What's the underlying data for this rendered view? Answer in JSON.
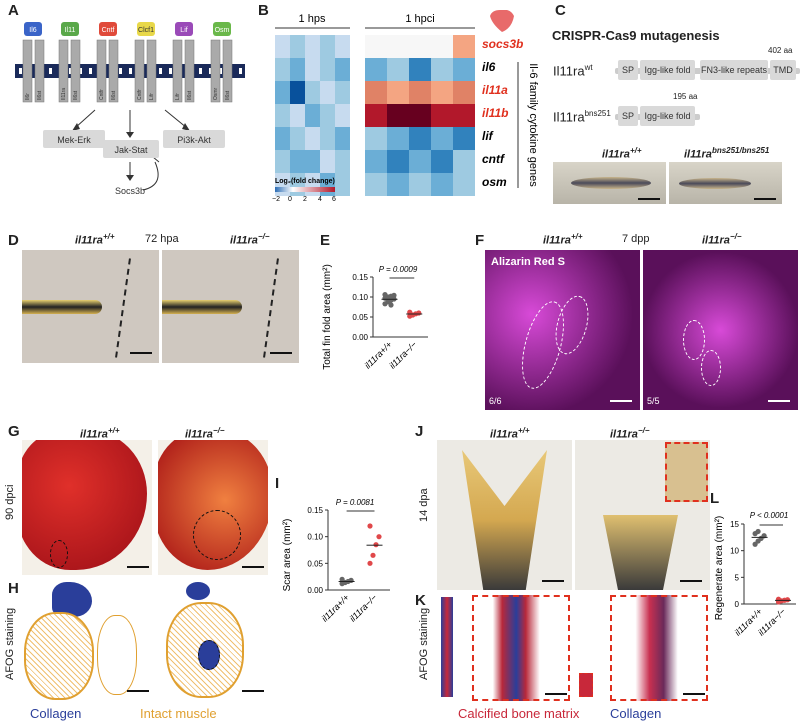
{
  "panels": {
    "A": "A",
    "B": "B",
    "C": "C",
    "D": "D",
    "E": "E",
    "F": "F",
    "G": "G",
    "H": "H",
    "I": "I",
    "J": "J",
    "K": "K",
    "L": "L"
  },
  "panelA": {
    "ligands": [
      "Il6",
      "Il11",
      "Cntf",
      "Clcf1",
      "Lif",
      "Osm"
    ],
    "ligand_colors": [
      "#3a64c8",
      "#5aa84a",
      "#e04a3a",
      "#e8d84a",
      "#9a4ab8",
      "#6ab84a"
    ],
    "receptors": [
      "Il6r",
      "Il6st",
      "Il11ra",
      "Il6st",
      "Cntfr",
      "Il6st",
      "Cntfr",
      "Lifr",
      "Lifr",
      "Il6st",
      "Osmr",
      "Il6st"
    ],
    "pathways": [
      "Mek-Erk",
      "Jak-Stat",
      "Pi3k-Akt"
    ],
    "feedback": "Socs3b"
  },
  "panelB": {
    "group1": "1 hps",
    "group2": "1 hpci",
    "genes": [
      "socs3b",
      "il6",
      "il11a",
      "il11b",
      "lif",
      "cntf",
      "osm"
    ],
    "bracket_label": "Il-6 family cytokine genes",
    "legend_title": "Log₂(fold change)",
    "legend_ticks": [
      "−2",
      "0",
      "2",
      "4",
      "6"
    ]
  },
  "panelC": {
    "title": "CRISPR-Cas9 mutagenesis",
    "wt_label": "Il11ra",
    "wt_sup": "wt",
    "wt_length": "402 aa",
    "wt_domains": [
      "SP",
      "Igg-like fold",
      "FN3-like repeats",
      "TMD"
    ],
    "mut_label": "Il11ra",
    "mut_sup": "bns251",
    "mut_length": "195 aa",
    "mut_domains": [
      "SP",
      "Igg-like fold"
    ],
    "fish_wt": "il11ra",
    "fish_wt_sup": "+/+",
    "fish_mut": "il11ra",
    "fish_mut_sup": "bns251/bns251"
  },
  "panelD": {
    "wt": "il11ra",
    "wt_sup": "+/+",
    "time": "72 hpa",
    "mut": "il11ra",
    "mut_sup": "−/−"
  },
  "panelE": {
    "ylabel": "Total fin fold area (mm²)",
    "pvalue": "P = 0.0009",
    "yticks": [
      "0.00",
      "0.05",
      "0.10",
      "0.15"
    ],
    "xticks": [
      "il11ra+/+",
      "il11ra−/−"
    ]
  },
  "panelF": {
    "wt": "il11ra",
    "wt_sup": "+/+",
    "time": "7 dpp",
    "mut": "il11ra",
    "mut_sup": "−/−",
    "stain": "Alizarin Red S",
    "count_wt": "6/6",
    "count_mut": "5/5"
  },
  "panelG": {
    "wt": "il11ra",
    "wt_sup": "+/+",
    "mut": "il11ra",
    "mut_sup": "−/−",
    "side": "90 dpci"
  },
  "panelH": {
    "side": "AFOG staining",
    "legend_collagen": "Collagen",
    "legend_muscle": "Intact muscle"
  },
  "panelI": {
    "ylabel": "Scar area (mm²)",
    "pvalue": "P = 0.0081",
    "yticks": [
      "0.00",
      "0.05",
      "0.10",
      "0.15"
    ],
    "xticks": [
      "il11ra+/+",
      "il11ra−/−"
    ]
  },
  "panelJ": {
    "wt": "il11ra",
    "wt_sup": "+/+",
    "mut": "il11ra",
    "mut_sup": "−/−",
    "side": "14 dpa"
  },
  "panelK": {
    "side": "AFOG staining",
    "legend_bone": "Calcified bone matrix",
    "legend_collagen": "Collagen"
  },
  "panelL": {
    "ylabel": "Regenerate area (mm²)",
    "pvalue": "P < 0.0001",
    "yticks": [
      "0",
      "5",
      "10",
      "15"
    ],
    "xticks": [
      "il11ra+/+",
      "il11ra−/−"
    ]
  },
  "colors": {
    "heat_neg": "#2c6db5",
    "heat_pos": "#b2182b",
    "red_text": "#e0301e",
    "wt_dots": "#666666",
    "mut_dots": "#e0484a",
    "collagen": "#2a3e9a",
    "muscle": "#e0a030"
  },
  "chart_data": [
    {
      "type": "scatter",
      "panel": "E",
      "ylabel": "Total fin fold area (mm²)",
      "ylim": [
        0,
        0.15
      ],
      "categories": [
        "il11ra+/+",
        "il11ra−/−"
      ],
      "series": [
        {
          "values": [
            0.083,
            0.088,
            0.092,
            0.095,
            0.097,
            0.1,
            0.102,
            0.104,
            0.106,
            0.09,
            0.08
          ]
        },
        {
          "values": [
            0.052,
            0.055,
            0.058,
            0.06,
            0.062
          ]
        }
      ]
    },
    {
      "type": "scatter",
      "panel": "I",
      "ylabel": "Scar area (mm²)",
      "ylim": [
        0,
        0.15
      ],
      "categories": [
        "il11ra+/+",
        "il11ra−/−"
      ],
      "series": [
        {
          "values": [
            0.012,
            0.014,
            0.016,
            0.018,
            0.02
          ]
        },
        {
          "values": [
            0.05,
            0.065,
            0.085,
            0.1,
            0.12
          ]
        }
      ]
    },
    {
      "type": "scatter",
      "panel": "L",
      "ylabel": "Regenerate area (mm²)",
      "ylim": [
        0,
        15
      ],
      "categories": [
        "il11ra+/+",
        "il11ra−/−"
      ],
      "series": [
        {
          "values": [
            11.2,
            11.8,
            12.3,
            12.8,
            13.2,
            13.6
          ]
        },
        {
          "values": [
            0.4,
            0.6,
            0.7,
            0.8,
            0.9
          ]
        }
      ]
    }
  ]
}
